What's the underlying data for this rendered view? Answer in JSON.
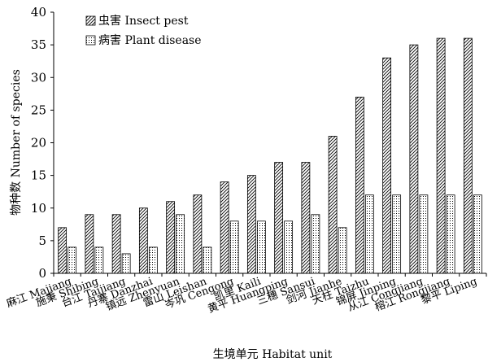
{
  "chart_data": {
    "type": "bar",
    "ylabel": "物种数 Number of species",
    "xlabel": "生境单元 Habitat unit",
    "ylim": [
      0,
      40
    ],
    "yticks": [
      0,
      5,
      10,
      15,
      20,
      25,
      30,
      35,
      40
    ],
    "grid": false,
    "legend_position": "top-left",
    "categories": [
      "麻江 Majiang",
      "施秉 Shibing",
      "台江 Taijiang",
      "丹寨 Danzhai",
      "镇远 Zhenyuan",
      "雷山 Leishan",
      "岑巩 Cengong",
      "凯里 Kaili",
      "黄平 Huangping",
      "三穗 Sansui",
      "剑河 Jianhe",
      "天柱 Taizhu",
      "锦屏 Jinping",
      "从江 Congjiang",
      "榕江 Rongjiang",
      "黎平 Liping"
    ],
    "series": [
      {
        "name": "虫害 Insect pest",
        "pattern": "hatch",
        "values": [
          7,
          9,
          9,
          10,
          11,
          12,
          14,
          15,
          17,
          17,
          21,
          27,
          33,
          35,
          36,
          36
        ]
      },
      {
        "name": "病害 Plant disease",
        "pattern": "dots",
        "values": [
          4,
          4,
          3,
          4,
          9,
          4,
          8,
          8,
          8,
          9,
          7,
          12,
          12,
          12,
          12,
          12
        ]
      }
    ]
  }
}
